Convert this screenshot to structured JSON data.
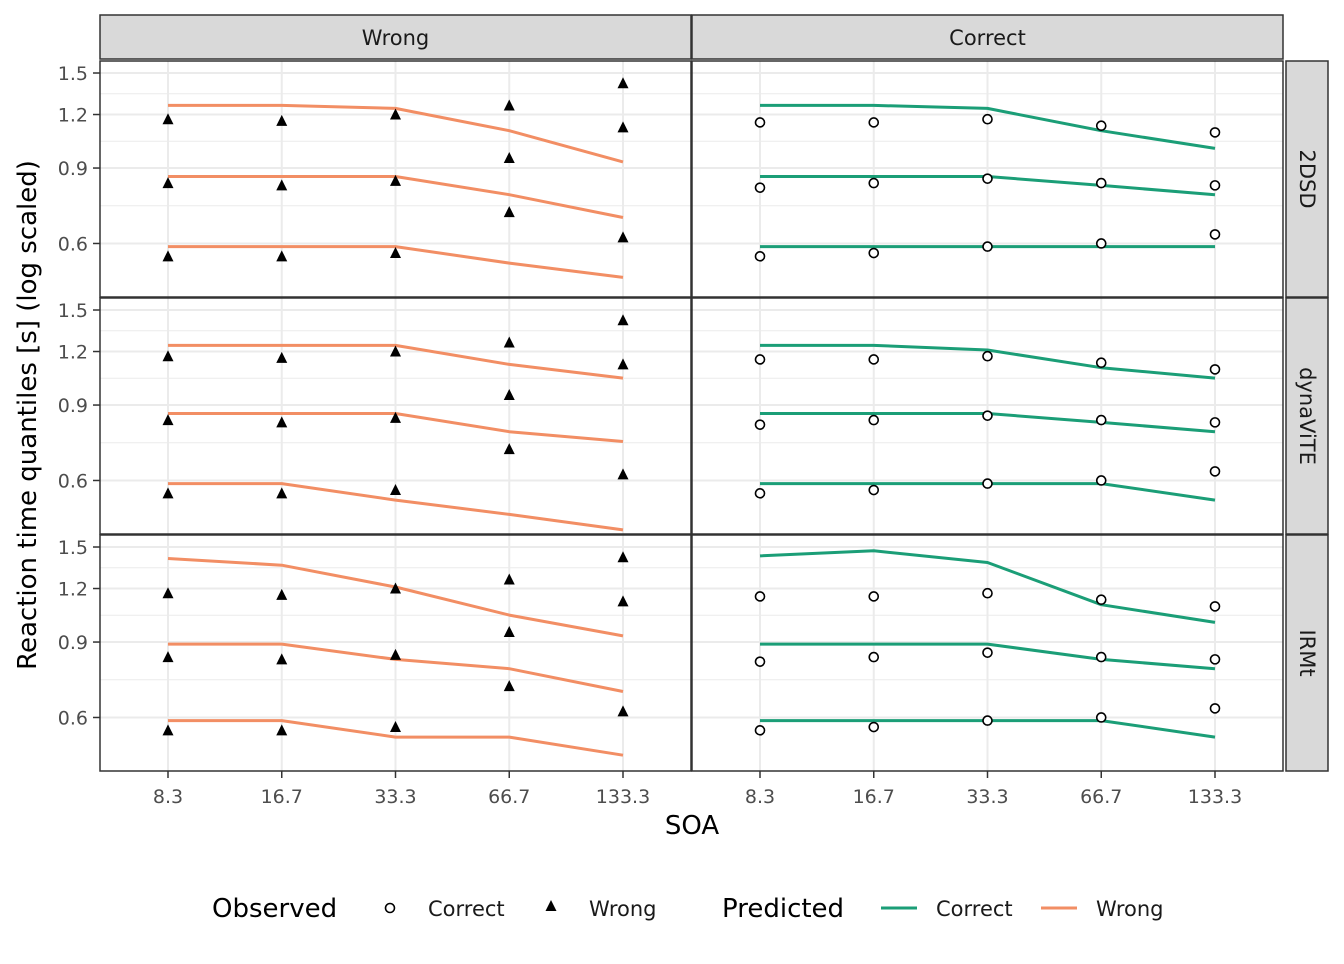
{
  "colors": {
    "correct": "#1b9e77",
    "wrong": "#f28e64",
    "strip_fill": "#d9d9d9",
    "grid": "#ebebeb",
    "panel_border": "#333333"
  },
  "chart_data": {
    "type": "line",
    "xlabel": "SOA",
    "ylabel": "Reaction time quantiles [s] (log scaled)",
    "x_categories": [
      "8.3",
      "16.7",
      "33.3",
      "66.7",
      "133.3"
    ],
    "y_ticks": [
      "0.6",
      "0.9",
      "1.2",
      "1.5"
    ],
    "y_scale": "log",
    "ylim": [
      0.45,
      1.6
    ],
    "columns": [
      "Wrong",
      "Correct"
    ],
    "rows": [
      "2DSD",
      "dynaViTE",
      "IRMt"
    ],
    "grid": true,
    "legend": {
      "position": "bottom",
      "observed_title": "Observed",
      "predicted_title": "Predicted",
      "observed_items": [
        {
          "label": "Correct",
          "shape": "open-circle"
        },
        {
          "label": "Wrong",
          "shape": "filled-triangle"
        }
      ],
      "predicted_items": [
        {
          "label": "Correct",
          "color": "#1b9e77"
        },
        {
          "label": "Wrong",
          "color": "#f28e64"
        }
      ]
    },
    "observed": {
      "Wrong": [
        [
          0.56,
          0.56,
          0.57,
          0.71,
          0.62
        ],
        [
          0.83,
          0.82,
          0.84,
          0.95,
          1.12
        ],
        [
          1.17,
          1.16,
          1.2,
          1.26,
          1.42
        ]
      ],
      "Correct": [
        [
          0.56,
          0.57,
          0.59,
          0.6,
          0.63
        ],
        [
          0.81,
          0.83,
          0.85,
          0.83,
          0.82
        ],
        [
          1.15,
          1.15,
          1.17,
          1.13,
          1.09
        ]
      ]
    },
    "panels": [
      {
        "row": "2DSD",
        "column": "Wrong",
        "predicted": [
          [
            0.59,
            0.59,
            0.59,
            0.54,
            0.5
          ],
          [
            0.86,
            0.86,
            0.86,
            0.78,
            0.69
          ],
          [
            1.26,
            1.26,
            1.24,
            1.1,
            0.93
          ]
        ]
      },
      {
        "row": "2DSD",
        "column": "Correct",
        "predicted": [
          [
            0.59,
            0.59,
            0.59,
            0.59,
            0.59
          ],
          [
            0.86,
            0.86,
            0.86,
            0.82,
            0.78
          ],
          [
            1.26,
            1.26,
            1.24,
            1.1,
            1.0
          ]
        ]
      },
      {
        "row": "dynaViTE",
        "column": "Wrong",
        "predicted": [
          [
            0.59,
            0.59,
            0.54,
            0.5,
            0.46
          ],
          [
            0.86,
            0.86,
            0.86,
            0.78,
            0.74
          ],
          [
            1.24,
            1.24,
            1.24,
            1.12,
            1.04
          ]
        ]
      },
      {
        "row": "dynaViTE",
        "column": "Correct",
        "predicted": [
          [
            0.59,
            0.59,
            0.59,
            0.59,
            0.54
          ],
          [
            0.86,
            0.86,
            0.86,
            0.82,
            0.78
          ],
          [
            1.24,
            1.24,
            1.21,
            1.1,
            1.04
          ]
        ]
      },
      {
        "row": "IRMt",
        "column": "Wrong",
        "predicted": [
          [
            0.59,
            0.59,
            0.54,
            0.54,
            0.49
          ],
          [
            0.89,
            0.89,
            0.82,
            0.78,
            0.69
          ],
          [
            1.41,
            1.36,
            1.21,
            1.04,
            0.93
          ]
        ]
      },
      {
        "row": "IRMt",
        "column": "Correct",
        "predicted": [
          [
            0.59,
            0.59,
            0.59,
            0.59,
            0.54
          ],
          [
            0.89,
            0.89,
            0.89,
            0.82,
            0.78
          ],
          [
            1.43,
            1.47,
            1.38,
            1.1,
            1.0
          ]
        ]
      }
    ]
  }
}
